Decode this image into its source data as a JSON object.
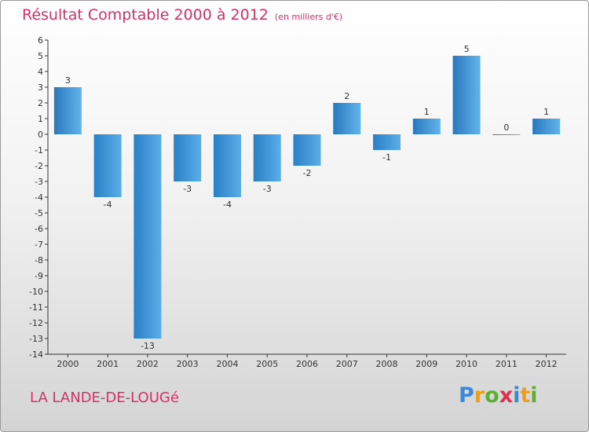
{
  "header": {
    "title": "Résultat Comptable 2000 à 2012",
    "subtitle": "(en milliers d'€)"
  },
  "commune": "LA LANDE-DE-LOUGé",
  "logo": {
    "letters": [
      "P",
      "r",
      "o",
      "x",
      "i",
      "t",
      "i"
    ],
    "colors": [
      "#3a8ad6",
      "#e8a020",
      "#5bb030",
      "#e03050",
      "#3a8ad6",
      "#e8a020",
      "#5bb030"
    ]
  },
  "chart_data": {
    "type": "bar",
    "title": "Résultat Comptable 2000 à 2012",
    "unit": "(en milliers d'€)",
    "categories": [
      "2000",
      "2001",
      "2002",
      "2003",
      "2004",
      "2005",
      "2006",
      "2007",
      "2008",
      "2009",
      "2010",
      "2011",
      "2012"
    ],
    "values": [
      3,
      -4,
      -13,
      -3,
      -4,
      -3,
      -2,
      2,
      -1,
      1,
      5,
      0,
      1
    ],
    "ylim": [
      -14,
      6
    ],
    "yticks": [
      6,
      5,
      4,
      3,
      2,
      1,
      0,
      -1,
      -2,
      -3,
      -4,
      -5,
      -6,
      -7,
      -8,
      -9,
      -10,
      -11,
      -12,
      -13,
      -14
    ],
    "xlabel": "",
    "ylabel": "",
    "bar_color": "#3a92d8",
    "grid": false
  }
}
